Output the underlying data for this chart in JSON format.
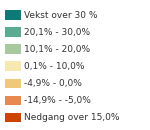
{
  "entries": [
    {
      "label": "Vekst over 30 %",
      "color": "#0e7a78"
    },
    {
      "label": "20,1% - 30,0%",
      "color": "#5aab8f"
    },
    {
      "label": "10,1% - 20,0%",
      "color": "#a8c9a0"
    },
    {
      "label": "0,1% - 10,0%",
      "color": "#f5e8b0"
    },
    {
      "label": "-4,9% - 0,0%",
      "color": "#f0c87a"
    },
    {
      "label": "-14,9% - -5,0%",
      "color": "#e88a50"
    },
    {
      "label": "Nedgang over 15,0%",
      "color": "#cc4400"
    }
  ],
  "background_color": "#ffffff",
  "font_size": 6.5,
  "text_color": "#333333",
  "figsize": [
    1.5,
    1.3
  ],
  "dpi": 100
}
